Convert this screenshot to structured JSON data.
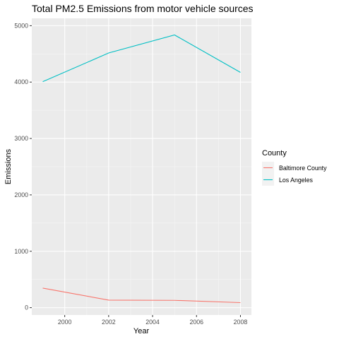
{
  "chart_data": {
    "type": "line",
    "title": "Total PM2.5 Emissions from motor vehicle sources",
    "xlabel": "Year",
    "ylabel": "Emissions",
    "xlim": [
      1998.5,
      2008.5
    ],
    "ylim": [
      -130,
      5130
    ],
    "xticks": [
      2000,
      2002,
      2004,
      2006,
      2008
    ],
    "yticks": [
      0,
      1000,
      2000,
      3000,
      4000,
      5000
    ],
    "grid": true,
    "legend_title": "County",
    "legend_position": "right",
    "series": [
      {
        "name": "Baltimore County",
        "color": "#F8766D",
        "x": [
          1999,
          2002,
          2005,
          2008
        ],
        "y": [
          347,
          134,
          130,
          89
        ]
      },
      {
        "name": "Los Angeles",
        "color": "#00BFC4",
        "x": [
          1999,
          2002,
          2005,
          2008
        ],
        "y": [
          4007,
          4516,
          4836,
          4172
        ]
      }
    ]
  }
}
